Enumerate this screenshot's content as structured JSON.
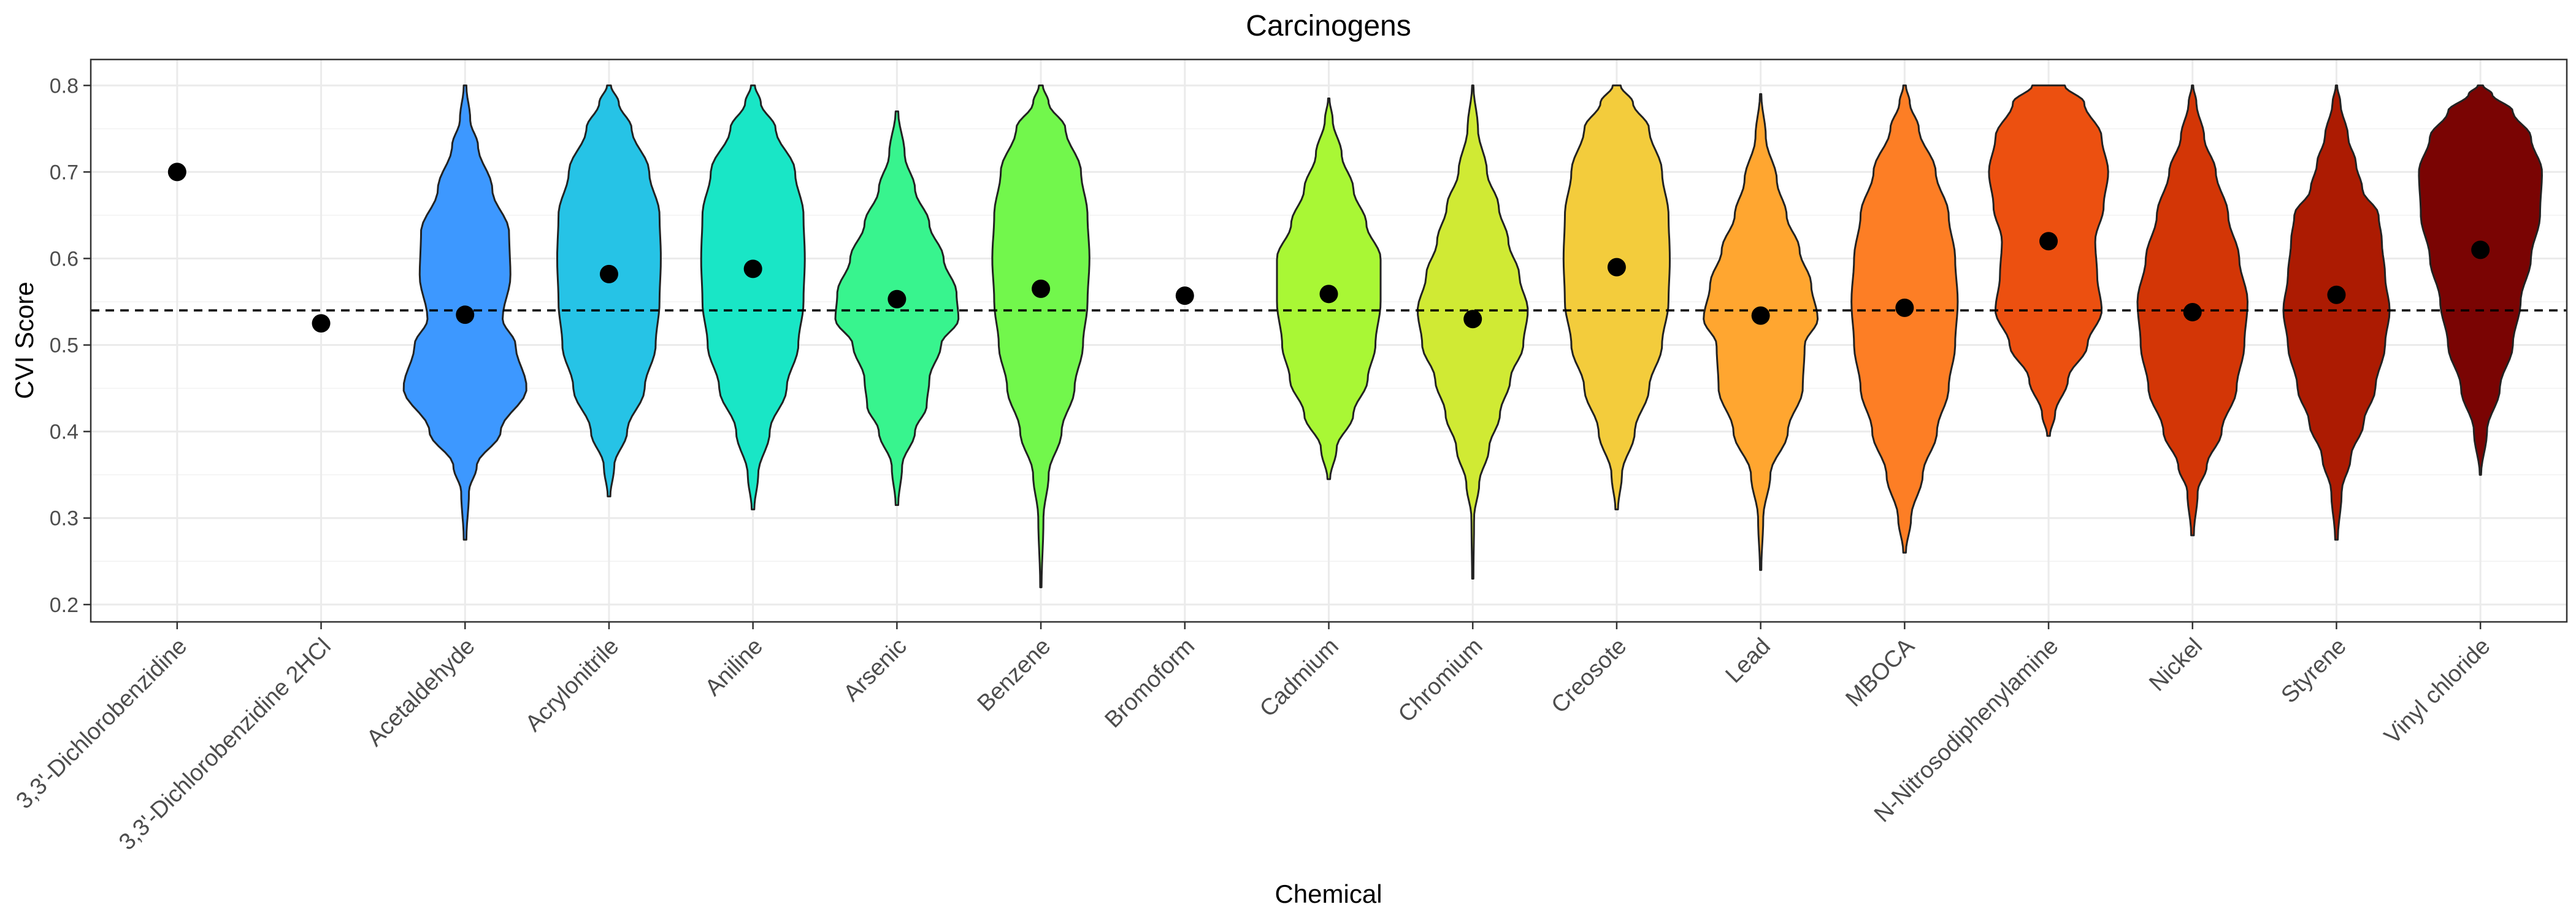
{
  "chart_data": {
    "type": "violin",
    "title": "Carcinogens",
    "xlabel": "Chemical",
    "ylabel": "CVI Score",
    "ylim": [
      0.18,
      0.83
    ],
    "yticks": [
      0.2,
      0.3,
      0.4,
      0.5,
      0.6,
      0.7,
      0.8
    ],
    "ytick_labels": [
      "0.2",
      "0.3",
      "0.4",
      "0.5",
      "0.6",
      "0.7",
      "0.8"
    ],
    "reference_line": 0.54,
    "grid": true,
    "legend": "none",
    "categories": [
      {
        "name": "3,3'-Dichlorobenzidine",
        "point": 0.7,
        "violin": null
      },
      {
        "name": "3,3'-Dichlorobenzidine 2HCl",
        "point": 0.525,
        "violin": null
      },
      {
        "name": "Acetaldehyde",
        "point": 0.535,
        "color": "#3d98ff",
        "violin": {
          "y": [
            0.275,
            0.33,
            0.36,
            0.4,
            0.45,
            0.5,
            0.53,
            0.58,
            0.63,
            0.68,
            0.73,
            0.76,
            0.8
          ],
          "w": [
            0.02,
            0.06,
            0.18,
            0.55,
            0.95,
            0.78,
            0.58,
            0.7,
            0.68,
            0.42,
            0.2,
            0.08,
            0.02
          ]
        }
      },
      {
        "name": "Acrylonitrile",
        "point": 0.582,
        "color": "#26c3e6",
        "violin": {
          "y": [
            0.325,
            0.36,
            0.4,
            0.45,
            0.5,
            0.55,
            0.6,
            0.65,
            0.7,
            0.75,
            0.78,
            0.8
          ],
          "w": [
            0.02,
            0.08,
            0.28,
            0.55,
            0.72,
            0.78,
            0.8,
            0.78,
            0.62,
            0.35,
            0.15,
            0.03
          ]
        }
      },
      {
        "name": "Aniline",
        "point": 0.588,
        "color": "#19e6c6",
        "violin": {
          "y": [
            0.31,
            0.35,
            0.4,
            0.45,
            0.5,
            0.55,
            0.6,
            0.65,
            0.7,
            0.75,
            0.78,
            0.8
          ],
          "w": [
            0.02,
            0.08,
            0.26,
            0.52,
            0.7,
            0.78,
            0.8,
            0.78,
            0.65,
            0.35,
            0.12,
            0.03
          ]
        }
      },
      {
        "name": "Arsenic",
        "point": 0.553,
        "color": "#38f48e",
        "violin": {
          "y": [
            0.315,
            0.36,
            0.4,
            0.43,
            0.46,
            0.5,
            0.53,
            0.56,
            0.6,
            0.64,
            0.68,
            0.72,
            0.77
          ],
          "w": [
            0.02,
            0.08,
            0.28,
            0.46,
            0.5,
            0.68,
            0.95,
            0.92,
            0.72,
            0.5,
            0.28,
            0.12,
            0.02
          ]
        }
      },
      {
        "name": "Benzene",
        "point": 0.565,
        "color": "#72f74c",
        "violin": {
          "y": [
            0.22,
            0.3,
            0.35,
            0.4,
            0.45,
            0.5,
            0.55,
            0.6,
            0.65,
            0.7,
            0.75,
            0.78,
            0.8
          ],
          "w": [
            0.01,
            0.04,
            0.12,
            0.32,
            0.52,
            0.65,
            0.72,
            0.75,
            0.72,
            0.62,
            0.38,
            0.12,
            0.03
          ]
        }
      },
      {
        "name": "Bromoform",
        "point": 0.557,
        "violin": null
      },
      {
        "name": "Cadmium",
        "point": 0.559,
        "color": "#a9f735",
        "violin": {
          "y": [
            0.345,
            0.38,
            0.42,
            0.46,
            0.5,
            0.55,
            0.6,
            0.64,
            0.68,
            0.72,
            0.76,
            0.785
          ],
          "w": [
            0.02,
            0.12,
            0.38,
            0.6,
            0.72,
            0.8,
            0.8,
            0.58,
            0.38,
            0.2,
            0.06,
            0.01
          ]
        }
      },
      {
        "name": "Chromium",
        "point": 0.53,
        "color": "#d0ea34",
        "violin": {
          "y": [
            0.23,
            0.3,
            0.34,
            0.38,
            0.42,
            0.46,
            0.5,
            0.54,
            0.58,
            0.62,
            0.66,
            0.7,
            0.75,
            0.8
          ],
          "w": [
            0.01,
            0.02,
            0.1,
            0.25,
            0.42,
            0.58,
            0.78,
            0.85,
            0.72,
            0.55,
            0.4,
            0.22,
            0.08,
            0.01
          ]
        }
      },
      {
        "name": "Creosote",
        "point": 0.59,
        "color": "#f3cc3c",
        "violin": {
          "y": [
            0.31,
            0.35,
            0.4,
            0.45,
            0.5,
            0.55,
            0.6,
            0.65,
            0.7,
            0.75,
            0.78,
            0.8
          ],
          "w": [
            0.02,
            0.08,
            0.28,
            0.5,
            0.7,
            0.8,
            0.82,
            0.8,
            0.7,
            0.5,
            0.25,
            0.06
          ]
        }
      },
      {
        "name": "Lead",
        "point": 0.534,
        "color": "#ffa630",
        "violin": {
          "y": [
            0.24,
            0.3,
            0.35,
            0.4,
            0.45,
            0.5,
            0.53,
            0.57,
            0.61,
            0.65,
            0.69,
            0.74,
            0.79
          ],
          "w": [
            0.01,
            0.04,
            0.15,
            0.42,
            0.65,
            0.68,
            0.88,
            0.78,
            0.6,
            0.4,
            0.25,
            0.08,
            0.01
          ]
        }
      },
      {
        "name": "MBOCA",
        "point": 0.543,
        "color": "#fd7e25",
        "violin": {
          "y": [
            0.26,
            0.3,
            0.35,
            0.4,
            0.45,
            0.5,
            0.55,
            0.6,
            0.65,
            0.7,
            0.75,
            0.78,
            0.8
          ],
          "w": [
            0.02,
            0.1,
            0.28,
            0.5,
            0.68,
            0.78,
            0.82,
            0.78,
            0.68,
            0.48,
            0.22,
            0.08,
            0.02
          ]
        }
      },
      {
        "name": "N-Nitrosodiphenylamine",
        "point": 0.62,
        "color": "#ec5010",
        "violin": {
          "y": [
            0.395,
            0.42,
            0.46,
            0.5,
            0.54,
            0.58,
            0.62,
            0.66,
            0.7,
            0.74,
            0.78,
            0.8
          ],
          "w": [
            0.02,
            0.1,
            0.3,
            0.6,
            0.82,
            0.75,
            0.72,
            0.85,
            0.92,
            0.82,
            0.55,
            0.25
          ]
        }
      },
      {
        "name": "Nickel",
        "point": 0.538,
        "color": "#d33606",
        "violin": {
          "y": [
            0.28,
            0.33,
            0.36,
            0.4,
            0.45,
            0.5,
            0.55,
            0.6,
            0.65,
            0.7,
            0.74,
            0.78,
            0.8
          ],
          "w": [
            0.02,
            0.08,
            0.22,
            0.45,
            0.68,
            0.8,
            0.85,
            0.72,
            0.55,
            0.36,
            0.18,
            0.06,
            0.01
          ]
        }
      },
      {
        "name": "Styrene",
        "point": 0.558,
        "color": "#ac1b02",
        "violin": {
          "y": [
            0.275,
            0.33,
            0.37,
            0.41,
            0.45,
            0.5,
            0.54,
            0.58,
            0.62,
            0.65,
            0.68,
            0.71,
            0.74,
            0.78,
            0.8
          ],
          "w": [
            0.02,
            0.08,
            0.22,
            0.42,
            0.6,
            0.75,
            0.82,
            0.75,
            0.7,
            0.65,
            0.4,
            0.3,
            0.18,
            0.06,
            0.01
          ]
        }
      },
      {
        "name": "Vinyl chloride",
        "point": 0.61,
        "color": "#7a0403",
        "violin": {
          "y": [
            0.35,
            0.4,
            0.45,
            0.5,
            0.55,
            0.6,
            0.65,
            0.7,
            0.74,
            0.77,
            0.79,
            0.8
          ],
          "w": [
            0.01,
            0.1,
            0.3,
            0.5,
            0.62,
            0.78,
            0.92,
            0.95,
            0.78,
            0.5,
            0.18,
            0.04
          ]
        }
      }
    ]
  }
}
